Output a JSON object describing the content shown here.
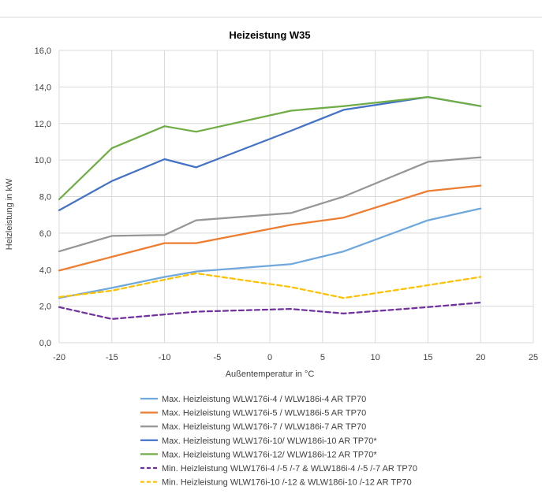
{
  "chart_data": {
    "type": "line",
    "title": "Heizeistung W35",
    "xlabel": "Außentemperatur in °C",
    "ylabel": "Heizleistung in kW",
    "xlim": [
      -20,
      25
    ],
    "ylim": [
      0,
      16
    ],
    "x_ticks": [
      "-20",
      "-15",
      "-10",
      "-5",
      "0",
      "5",
      "10",
      "15",
      "20",
      "25"
    ],
    "y_ticks": [
      "0,0",
      "2,0",
      "4,0",
      "6,0",
      "8,0",
      "10,0",
      "12,0",
      "14,0",
      "16,0"
    ],
    "grid": "vertical-and-horizontal",
    "legend_position": "bottom",
    "series": [
      {
        "name": "Max. Heizleistung WLW176i-4 / WLW186i-4 AR TP70",
        "color": "#6fa8dc",
        "dash": false,
        "x": [
          -20,
          -15,
          -10,
          -7,
          2,
          7,
          15,
          20
        ],
        "y": [
          2.45,
          3.0,
          3.6,
          3.9,
          4.3,
          5.0,
          6.7,
          7.35
        ]
      },
      {
        "name": "Max. Heizleistung WLW176i-5 / WLW186i-5 AR TP70",
        "color": "#ed7d31",
        "dash": false,
        "x": [
          -20,
          -15,
          -10,
          -7,
          2,
          7,
          15,
          20
        ],
        "y": [
          3.95,
          4.7,
          5.45,
          5.45,
          6.45,
          6.85,
          8.3,
          8.6
        ]
      },
      {
        "name": "Max. Heizleistung WLW176i-7 / WLW186i-7 AR TP70",
        "color": "#969696",
        "dash": false,
        "x": [
          -20,
          -15,
          -10,
          -7,
          2,
          7,
          15,
          20
        ],
        "y": [
          5.0,
          5.85,
          5.9,
          6.7,
          7.1,
          8.0,
          9.9,
          10.15
        ]
      },
      {
        "name": "Max. Heizleistung WLW176i-10/ WLW186i-10 AR TP70*",
        "color": "#4472c4",
        "dash": false,
        "x": [
          -20,
          -15,
          -10,
          -7,
          2,
          7,
          15,
          20
        ],
        "y": [
          7.25,
          8.85,
          10.05,
          9.6,
          11.6,
          12.75,
          13.45,
          12.95
        ]
      },
      {
        "name": "Max. Heizleistung WLW176i-12/ WLW186i-12 AR TP70*",
        "color": "#70ad47",
        "dash": false,
        "x": [
          -20,
          -15,
          -10,
          -7,
          2,
          7,
          15,
          20
        ],
        "y": [
          7.85,
          10.65,
          11.85,
          11.55,
          12.7,
          12.95,
          13.45,
          12.95
        ]
      },
      {
        "name": "Min. Heizleistung WLW176i-4 /-5 /-7 & WLW186i-4 /-5 /-7 AR TP70",
        "color": "#7030a0",
        "dash": true,
        "x": [
          -20,
          -15,
          -10,
          -7,
          2,
          7,
          15,
          20
        ],
        "y": [
          1.95,
          1.3,
          1.55,
          1.7,
          1.85,
          1.6,
          1.95,
          2.2
        ]
      },
      {
        "name": "Min. Heizleistung WLW176i-10 /-12 & WLW186i-10 /-12 AR TP70",
        "color": "#ffc000",
        "dash": true,
        "x": [
          -20,
          -15,
          -10,
          -7,
          2,
          7,
          15,
          20
        ],
        "y": [
          2.5,
          2.85,
          3.45,
          3.8,
          3.05,
          2.45,
          3.15,
          3.6
        ]
      }
    ]
  }
}
